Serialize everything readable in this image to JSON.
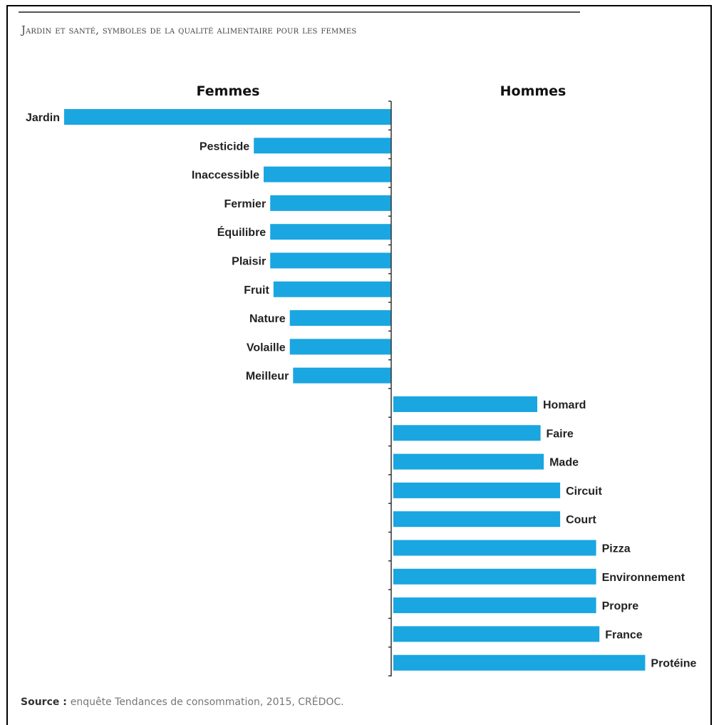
{
  "title": "Jardin et santé, symboles de la qualité alimentaire pour les femmes",
  "source_label": "Source",
  "source_sep": " : ",
  "source_text": "enquête Tendances de consommation, 2015, CRÉDOC.",
  "colors": {
    "bar": "#1aa6e0"
  },
  "chart_data": {
    "type": "bar",
    "orientation": "horizontal-diverging",
    "title": "Jardin et santé, symboles de la qualité alimentaire pour les femmes",
    "groups": [
      {
        "name": "Femmes",
        "side": "left",
        "categories": [
          "Jardin",
          "Pesticide",
          "Inaccessible",
          "Fermier",
          "Équilibre",
          "Plaisir",
          "Fruit",
          "Nature",
          "Volaille",
          "Meilleur"
        ],
        "values": [
          100,
          42,
          39,
          37,
          37,
          37,
          36,
          31,
          31,
          30
        ]
      },
      {
        "name": "Hommes",
        "side": "right",
        "categories": [
          "Homard",
          "Faire",
          "Made",
          "Circuit",
          "Court",
          "Pizza",
          "Environnement",
          "Propre",
          "France",
          "Protéine"
        ],
        "values": [
          44,
          45,
          46,
          51,
          51,
          62,
          62,
          62,
          63,
          77
        ]
      }
    ],
    "value_axis": "none",
    "max_value": 100
  }
}
